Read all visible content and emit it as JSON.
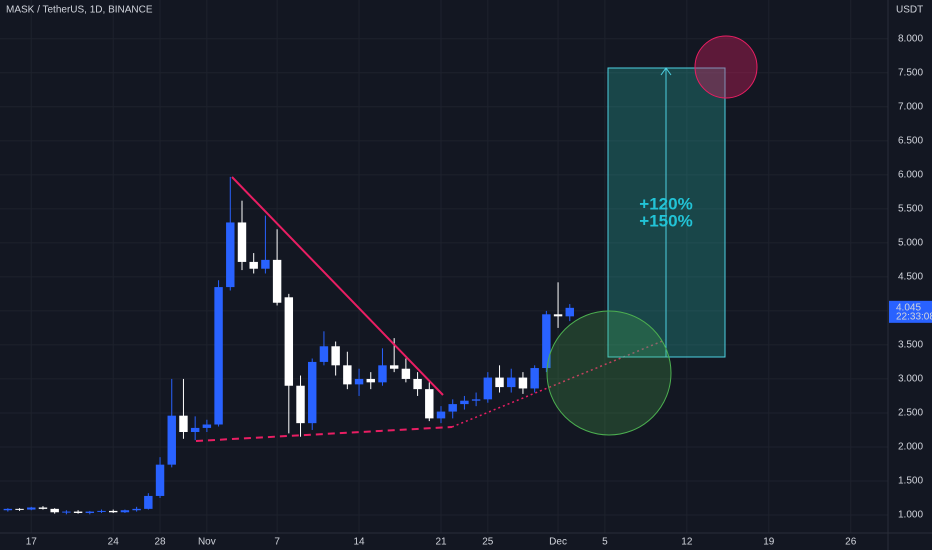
{
  "chart_data": {
    "type": "candlestick",
    "title": "MASK / TetherUS, 1D, BINANCE",
    "y_axis_label": "USDT",
    "categories": [
      null,
      null,
      "17",
      null,
      null,
      null,
      null,
      null,
      null,
      "24",
      null,
      null,
      null,
      "28",
      null,
      null,
      null,
      "Nov",
      null,
      null,
      null,
      null,
      null,
      "7",
      null,
      null,
      null,
      null,
      null,
      null,
      "14",
      null,
      null,
      null,
      null,
      null,
      null,
      "21",
      null,
      null,
      null,
      "25",
      null,
      null,
      null,
      null,
      null,
      "Dec",
      null,
      null,
      null,
      "5",
      null,
      null,
      null,
      null,
      null,
      null,
      "12",
      null,
      null,
      null,
      null,
      null,
      null,
      "19",
      null,
      null,
      null,
      null,
      null,
      null,
      "26",
      null,
      null
    ],
    "open": [
      1.07,
      1.09,
      1.08,
      1.11,
      1.09,
      1.04,
      1.05,
      1.03,
      1.05,
      1.06,
      1.04,
      1.07,
      1.09,
      1.28,
      1.74,
      2.46,
      2.22,
      2.28,
      2.33,
      4.35,
      5.3,
      4.72,
      4.62,
      4.75,
      4.2,
      2.9,
      2.35,
      3.25,
      3.48,
      3.2,
      2.92,
      3.0,
      2.95,
      3.2,
      3.15,
      3.0,
      2.85,
      2.42,
      2.52,
      2.63,
      2.68,
      2.7,
      3.02,
      2.88,
      3.02,
      2.86,
      3.16,
      3.95,
      3.92,
      null,
      null,
      null,
      null,
      null,
      null,
      null,
      null,
      null,
      null,
      null,
      null,
      null,
      null,
      null,
      null,
      null,
      null,
      null,
      null,
      null,
      null,
      null,
      null,
      null,
      null
    ],
    "high": [
      1.1,
      1.1,
      1.12,
      1.13,
      1.1,
      1.07,
      1.07,
      1.06,
      1.08,
      1.08,
      1.08,
      1.12,
      1.32,
      1.85,
      3.0,
      3.0,
      2.45,
      2.4,
      4.45,
      5.97,
      5.62,
      4.85,
      5.4,
      5.2,
      4.25,
      3.05,
      3.3,
      3.7,
      3.55,
      3.4,
      3.15,
      3.1,
      3.45,
      3.6,
      3.3,
      3.1,
      2.95,
      2.6,
      2.7,
      2.75,
      2.8,
      3.1,
      3.2,
      3.15,
      3.1,
      3.2,
      4.0,
      4.42,
      4.1,
      null,
      null,
      null,
      null,
      null,
      null,
      null,
      null,
      null,
      null,
      null,
      null,
      null,
      null,
      null,
      null,
      null,
      null,
      null,
      null,
      null,
      null,
      null,
      null,
      null,
      null
    ],
    "low": [
      1.05,
      1.06,
      1.07,
      1.08,
      1.02,
      1.01,
      1.02,
      1.01,
      1.03,
      1.03,
      1.03,
      1.05,
      1.08,
      1.25,
      1.7,
      2.12,
      2.1,
      2.22,
      2.3,
      4.3,
      4.6,
      4.55,
      4.55,
      4.08,
      2.2,
      2.15,
      2.25,
      3.2,
      3.05,
      2.85,
      2.75,
      2.85,
      2.9,
      3.1,
      2.95,
      2.75,
      2.38,
      2.35,
      2.42,
      2.55,
      2.6,
      2.65,
      2.8,
      2.8,
      2.78,
      2.8,
      3.1,
      3.75,
      3.85,
      null,
      null,
      null,
      null,
      null,
      null,
      null,
      null,
      null,
      null,
      null,
      null,
      null,
      null,
      null,
      null,
      null,
      null,
      null,
      null,
      null,
      null,
      null,
      null,
      null,
      null
    ],
    "close": [
      1.09,
      1.08,
      1.11,
      1.09,
      1.04,
      1.05,
      1.03,
      1.05,
      1.06,
      1.04,
      1.07,
      1.09,
      1.28,
      1.74,
      2.46,
      2.22,
      2.28,
      2.33,
      4.35,
      5.3,
      4.72,
      4.62,
      4.75,
      4.12,
      2.9,
      2.35,
      3.25,
      3.48,
      3.2,
      2.92,
      3.0,
      2.95,
      3.2,
      3.15,
      3.0,
      2.85,
      2.42,
      2.52,
      2.63,
      2.68,
      2.7,
      3.02,
      2.88,
      3.02,
      2.86,
      3.16,
      3.95,
      3.92,
      4.045,
      null,
      null,
      null,
      null,
      null,
      null,
      null,
      null,
      null,
      null,
      null,
      null,
      null,
      null,
      null,
      null,
      null,
      null,
      null,
      null,
      null,
      null,
      null,
      null,
      null,
      null
    ],
    "up_color": "#2962ff",
    "down_color": "#ffffff",
    "ylim": [
      0.75,
      8.57
    ],
    "yticks": [
      {
        "value": 1,
        "label": "1.000"
      },
      {
        "value": 1.5,
        "label": "1.500"
      },
      {
        "value": 2,
        "label": "2.000"
      },
      {
        "value": 2.5,
        "label": "2.500"
      },
      {
        "value": 3,
        "label": "3.000"
      },
      {
        "value": 3.5,
        "label": "3.500"
      },
      {
        "value": 4,
        "label": "4.000"
      },
      {
        "value": 4.5,
        "label": "4.500"
      },
      {
        "value": 5,
        "label": "5.000"
      },
      {
        "value": 5.5,
        "label": "5.500"
      },
      {
        "value": 6,
        "label": "6.000"
      },
      {
        "value": 6.5,
        "label": "6.500"
      },
      {
        "value": 7,
        "label": "7.000"
      },
      {
        "value": 7.5,
        "label": "7.500"
      },
      {
        "value": 8,
        "label": "8.000"
      }
    ],
    "grid": true,
    "last_price": 4.045,
    "countdown": "22:33:08",
    "annotations": [
      "+120%",
      "+150%"
    ]
  }
}
